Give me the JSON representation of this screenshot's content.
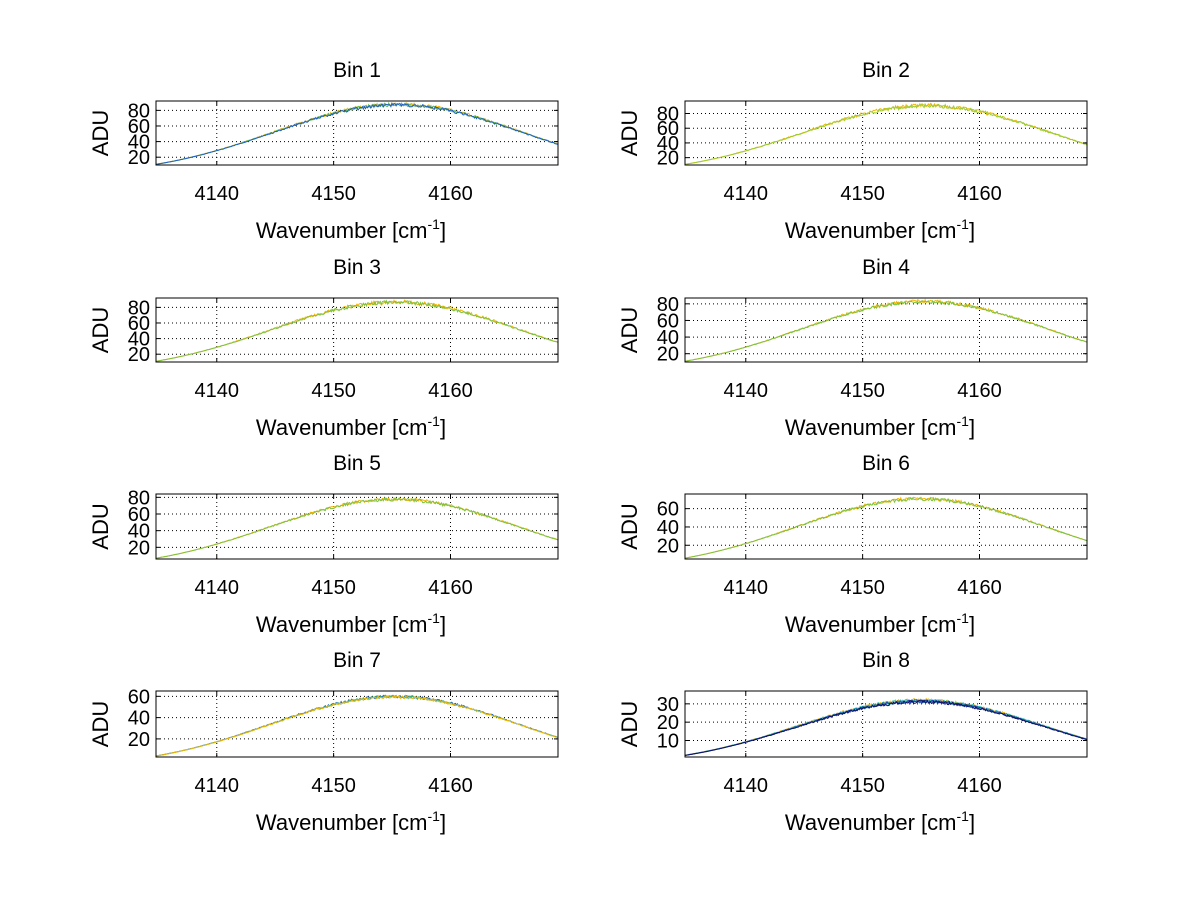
{
  "chart_data": [
    {
      "type": "line",
      "title": "Bin 1",
      "xlabel": "Wavenumber [cm",
      "xlabel_sup": "-1",
      "xlabel_close": "]",
      "ylabel": "ADU",
      "xlim": [
        4134.8,
        4169.2
      ],
      "ylim": [
        10,
        92
      ],
      "xticks": [
        4140,
        4150,
        4160
      ],
      "xtick_labels": [
        "4140",
        "4150",
        "4160"
      ],
      "yticks": [
        20,
        40,
        60,
        80
      ],
      "ytick_labels": [
        "20",
        "40",
        "60",
        "80"
      ],
      "grid": true,
      "curve": {
        "min": 11,
        "max": 88,
        "center": 4155.5,
        "width": 17.5,
        "noise": 2.2
      },
      "series": [
        {
          "name": "orange",
          "color": "#f2b705"
        },
        {
          "name": "green",
          "color": "#5bbf5a"
        },
        {
          "name": "blue",
          "color": "#1f5fc8"
        }
      ]
    },
    {
      "type": "line",
      "title": "Bin 2",
      "xlabel": "Wavenumber [cm",
      "xlabel_sup": "-1",
      "xlabel_close": "]",
      "ylabel": "ADU",
      "xlim": [
        4134.8,
        4169.2
      ],
      "ylim": [
        10,
        97
      ],
      "xticks": [
        4140,
        4150,
        4160
      ],
      "xtick_labels": [
        "4140",
        "4150",
        "4160"
      ],
      "yticks": [
        20,
        40,
        60,
        80
      ],
      "ytick_labels": [
        "20",
        "40",
        "60",
        "80"
      ],
      "grid": true,
      "curve": {
        "min": 11,
        "max": 91,
        "center": 4155.5,
        "width": 17.5,
        "noise": 2.6
      },
      "series": [
        {
          "name": "orange",
          "color": "#f2b705"
        },
        {
          "name": "green",
          "color": "#9acd32"
        }
      ]
    },
    {
      "type": "line",
      "title": "Bin 3",
      "xlabel": "Wavenumber [cm",
      "xlabel_sup": "-1",
      "xlabel_close": "]",
      "ylabel": "ADU",
      "xlim": [
        4134.8,
        4169.2
      ],
      "ylim": [
        10,
        92
      ],
      "xticks": [
        4140,
        4150,
        4160
      ],
      "xtick_labels": [
        "4140",
        "4150",
        "4160"
      ],
      "yticks": [
        20,
        40,
        60,
        80
      ],
      "ytick_labels": [
        "20",
        "40",
        "60",
        "80"
      ],
      "grid": true,
      "curve": {
        "min": 11,
        "max": 87,
        "center": 4155.3,
        "width": 17.5,
        "noise": 2.4
      },
      "series": [
        {
          "name": "orange",
          "color": "#f2b705"
        },
        {
          "name": "green",
          "color": "#7dc242"
        }
      ]
    },
    {
      "type": "line",
      "title": "Bin 4",
      "xlabel": "Wavenumber [cm",
      "xlabel_sup": "-1",
      "xlabel_close": "]",
      "ylabel": "ADU",
      "xlim": [
        4134.8,
        4169.2
      ],
      "ylim": [
        10,
        87
      ],
      "xticks": [
        4140,
        4150,
        4160
      ],
      "xtick_labels": [
        "4140",
        "4150",
        "4160"
      ],
      "yticks": [
        20,
        40,
        60,
        80
      ],
      "ytick_labels": [
        "20",
        "40",
        "60",
        "80"
      ],
      "grid": true,
      "curve": {
        "min": 11,
        "max": 83,
        "center": 4155.3,
        "width": 17.5,
        "noise": 2.0
      },
      "series": [
        {
          "name": "orange",
          "color": "#f2b705"
        },
        {
          "name": "green",
          "color": "#7dc242"
        }
      ]
    },
    {
      "type": "line",
      "title": "Bin 5",
      "xlabel": "Wavenumber [cm",
      "xlabel_sup": "-1",
      "xlabel_close": "]",
      "ylabel": "ADU",
      "xlim": [
        4134.8,
        4169.2
      ],
      "ylim": [
        6,
        84
      ],
      "xticks": [
        4140,
        4150,
        4160
      ],
      "xtick_labels": [
        "4140",
        "4150",
        "4160"
      ],
      "yticks": [
        20,
        40,
        60,
        80
      ],
      "ytick_labels": [
        "20",
        "40",
        "60",
        "80"
      ],
      "grid": true,
      "curve": {
        "min": 7,
        "max": 78,
        "center": 4155.2,
        "width": 17.5,
        "noise": 2.0
      },
      "series": [
        {
          "name": "orange",
          "color": "#f2b705"
        },
        {
          "name": "green",
          "color": "#7dc242"
        }
      ]
    },
    {
      "type": "line",
      "title": "Bin 6",
      "xlabel": "Wavenumber [cm",
      "xlabel_sup": "-1",
      "xlabel_close": "]",
      "ylabel": "ADU",
      "xlim": [
        4134.8,
        4169.2
      ],
      "ylim": [
        5,
        76
      ],
      "xticks": [
        4140,
        4150,
        4160
      ],
      "xtick_labels": [
        "4140",
        "4150",
        "4160"
      ],
      "yticks": [
        20,
        40,
        60
      ],
      "ytick_labels": [
        "20",
        "40",
        "60"
      ],
      "grid": true,
      "curve": {
        "min": 6,
        "max": 71,
        "center": 4155.0,
        "width": 17.5,
        "noise": 1.8
      },
      "series": [
        {
          "name": "orange",
          "color": "#f2b705"
        },
        {
          "name": "green",
          "color": "#7dc242"
        }
      ]
    },
    {
      "type": "line",
      "title": "Bin 7",
      "xlabel": "Wavenumber [cm",
      "xlabel_sup": "-1",
      "xlabel_close": "]",
      "ylabel": "ADU",
      "xlim": [
        4134.8,
        4169.2
      ],
      "ylim": [
        3,
        65
      ],
      "xticks": [
        4140,
        4150,
        4160
      ],
      "xtick_labels": [
        "4140",
        "4150",
        "4160"
      ],
      "yticks": [
        20,
        40,
        60
      ],
      "ytick_labels": [
        "20",
        "40",
        "60"
      ],
      "grid": true,
      "curve": {
        "min": 4,
        "max": 60,
        "center": 4155.2,
        "width": 17.5,
        "noise": 1.3
      },
      "series": [
        {
          "name": "blue",
          "color": "#1f5fc8"
        },
        {
          "name": "green",
          "color": "#3cb371"
        },
        {
          "name": "orange",
          "color": "#f2b705"
        }
      ]
    },
    {
      "type": "line",
      "title": "Bin 8",
      "xlabel": "Wavenumber [cm",
      "xlabel_sup": "-1",
      "xlabel_close": "]",
      "ylabel": "ADU",
      "xlim": [
        4134.8,
        4169.2
      ],
      "ylim": [
        1,
        37
      ],
      "xticks": [
        4140,
        4150,
        4160
      ],
      "xtick_labels": [
        "4140",
        "4150",
        "4160"
      ],
      "yticks": [
        10,
        20,
        30
      ],
      "ytick_labels": [
        "10",
        "20",
        "30"
      ],
      "grid": true,
      "curve": {
        "min": 2,
        "max": 32,
        "center": 4155.0,
        "width": 17.5,
        "noise": 0.9
      },
      "series": [
        {
          "name": "orange",
          "color": "#f2b705"
        },
        {
          "name": "green",
          "color": "#2ec4b6"
        },
        {
          "name": "teal",
          "color": "#1f8fb0"
        },
        {
          "name": "blue",
          "color": "#1f3fae"
        },
        {
          "name": "navy",
          "color": "#101060"
        }
      ]
    }
  ]
}
